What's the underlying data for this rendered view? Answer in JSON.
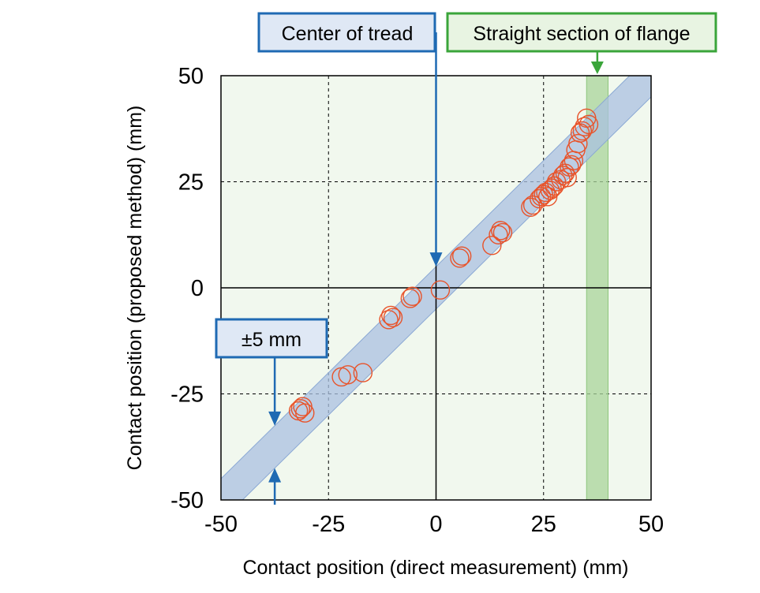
{
  "chart_data": {
    "type": "scatter",
    "xlabel": "Contact position (direct measurement) (mm)",
    "ylabel": "Contact position (proposed method) (mm)",
    "xlim": [
      -50,
      50
    ],
    "ylim": [
      -50,
      50
    ],
    "x_ticks": [
      "-50",
      "-25",
      "0",
      "25",
      "50"
    ],
    "y_ticks": [
      "50",
      "25",
      "0",
      "-25",
      "-50"
    ],
    "grid": true,
    "series": [
      {
        "marker": "open-circle",
        "color": "#e8532a",
        "points": [
          [
            -32,
            -29
          ],
          [
            -31.5,
            -28.5
          ],
          [
            -31,
            -28
          ],
          [
            -30.5,
            -29.5
          ],
          [
            -22,
            -21
          ],
          [
            -20.5,
            -20.5
          ],
          [
            -17,
            -20
          ],
          [
            -11,
            -7.5
          ],
          [
            -10.5,
            -6.5
          ],
          [
            -10,
            -7
          ],
          [
            -6,
            -2.5
          ],
          [
            -5.5,
            -2
          ],
          [
            1,
            -0.5
          ],
          [
            5.5,
            7
          ],
          [
            6,
            7.5
          ],
          [
            13,
            10
          ],
          [
            14.5,
            12.5
          ],
          [
            15,
            13.5
          ],
          [
            15.5,
            13
          ],
          [
            22,
            19
          ],
          [
            22.5,
            19.5
          ],
          [
            24,
            21
          ],
          [
            24.5,
            21.5
          ],
          [
            25,
            22
          ],
          [
            25.5,
            22.5
          ],
          [
            26,
            21.5
          ],
          [
            26.5,
            23
          ],
          [
            27,
            23.5
          ],
          [
            27.5,
            24
          ],
          [
            28,
            25
          ],
          [
            29,
            25.5
          ],
          [
            29.5,
            26.5
          ],
          [
            30,
            27
          ],
          [
            30.5,
            26
          ],
          [
            31,
            28.5
          ],
          [
            31.5,
            29
          ],
          [
            32,
            30
          ],
          [
            32.5,
            32.5
          ],
          [
            33,
            34
          ],
          [
            33.5,
            36.5
          ],
          [
            34,
            37
          ],
          [
            34.5,
            38
          ],
          [
            35,
            40
          ],
          [
            35.5,
            38.5
          ]
        ]
      }
    ],
    "band": {
      "half_width_mm": 5,
      "color": "#a9c0e0"
    },
    "flange_region": {
      "x_range": [
        35,
        40
      ],
      "color": "#a8d49a"
    },
    "annotations": [
      {
        "text": "Center of tread",
        "color": "#1f6ab3",
        "points_to": [
          0,
          5
        ]
      },
      {
        "text": "Straight section of flange",
        "color": "#3aa53a",
        "points_to": [
          37.5,
          50
        ]
      },
      {
        "text": "±5 mm",
        "color": "#1f6ab3",
        "points_to": [
          -37.5,
          -37.5
        ]
      }
    ],
    "background_color": "#f1f8ee"
  }
}
